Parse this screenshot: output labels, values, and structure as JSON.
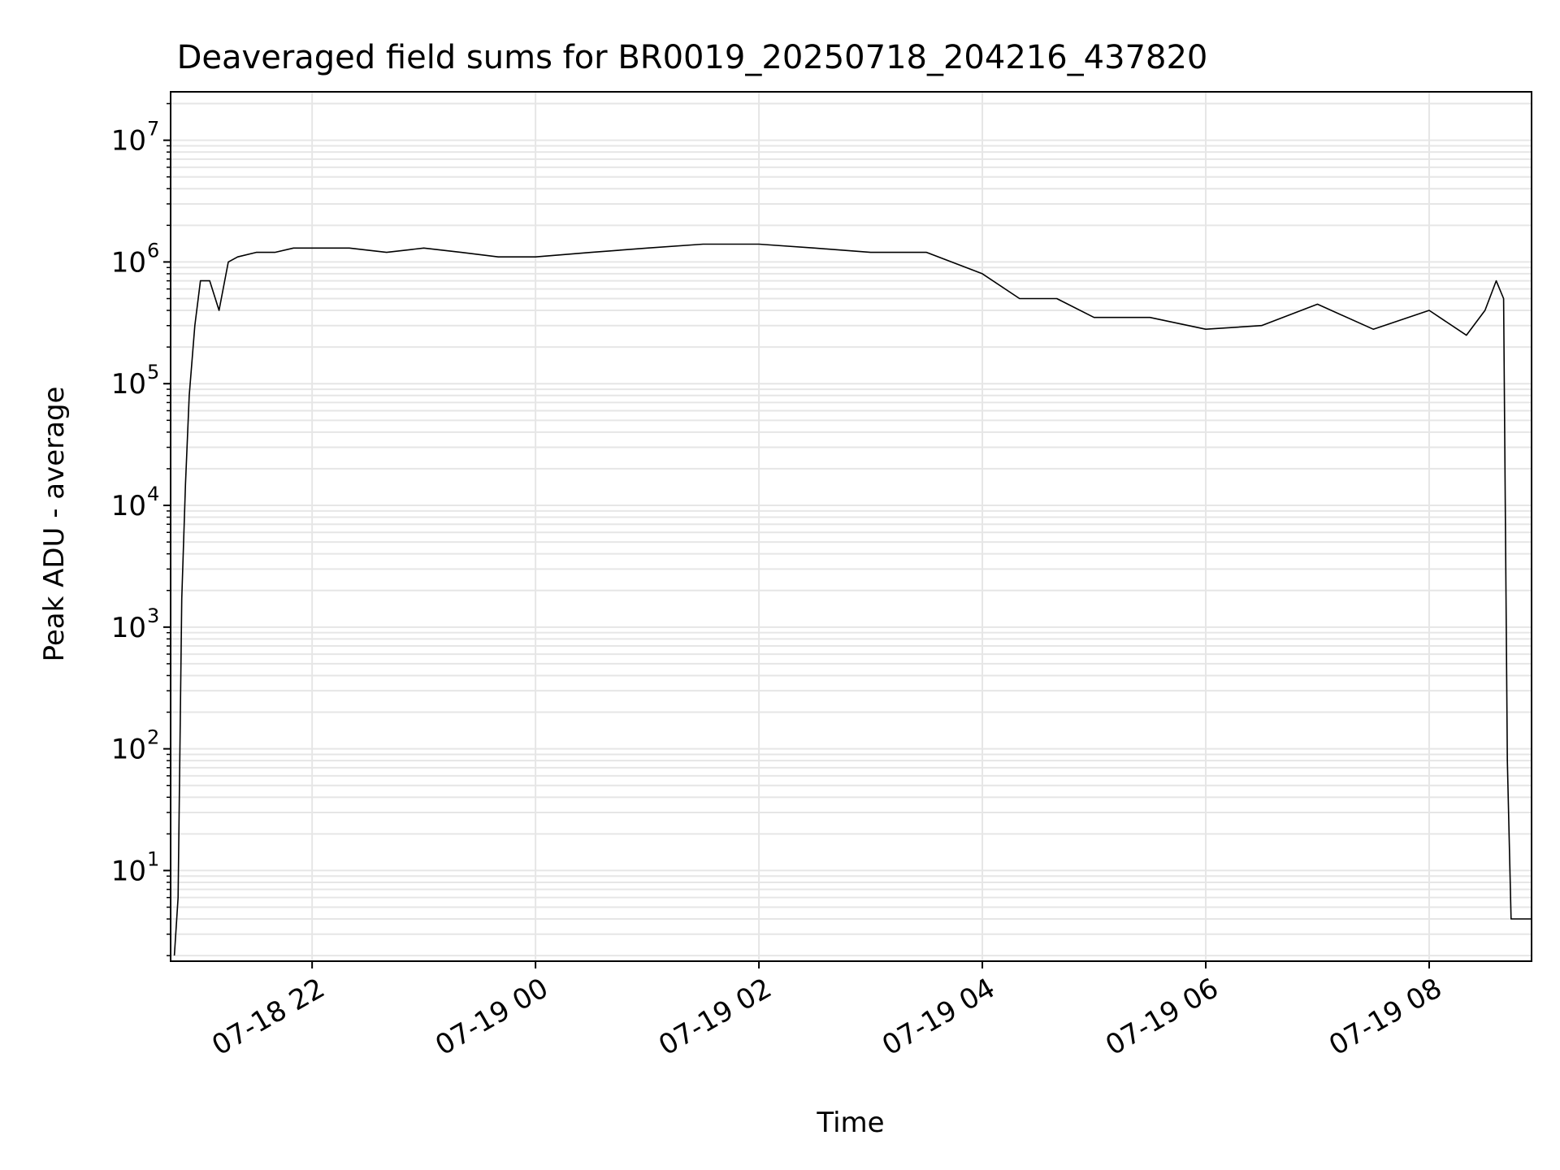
{
  "chart_data": {
    "type": "line",
    "title": "Deaveraged field sums for BR0019_20250718_204216_437820",
    "xlabel": "Time",
    "ylabel": "Peak ADU - average",
    "x_scale": "time",
    "y_scale": "log",
    "xlim": [
      "2025-07-18 20:44",
      "2025-07-19 08:55"
    ],
    "ylim": [
      1.8,
      25000000
    ],
    "x_ticks": [
      {
        "value": "2025-07-18 22:00",
        "label": "07-18 22"
      },
      {
        "value": "2025-07-19 00:00",
        "label": "07-19 00"
      },
      {
        "value": "2025-07-19 02:00",
        "label": "07-19 02"
      },
      {
        "value": "2025-07-19 04:00",
        "label": "07-19 04"
      },
      {
        "value": "2025-07-19 06:00",
        "label": "07-19 06"
      },
      {
        "value": "2025-07-19 08:00",
        "label": "07-19 08"
      }
    ],
    "y_ticks": [
      {
        "value": 10,
        "base": "10",
        "exp": "1"
      },
      {
        "value": 100,
        "base": "10",
        "exp": "2"
      },
      {
        "value": 1000,
        "base": "10",
        "exp": "3"
      },
      {
        "value": 10000,
        "base": "10",
        "exp": "4"
      },
      {
        "value": 100000,
        "base": "10",
        "exp": "5"
      },
      {
        "value": 1000000,
        "base": "10",
        "exp": "6"
      },
      {
        "value": 10000000,
        "base": "10",
        "exp": "7"
      }
    ],
    "grid": true,
    "line_color": "#000000",
    "grid_color": "#e6e6e6",
    "series": [
      {
        "x": [
          "2025-07-18 20:46",
          "2025-07-18 20:48",
          "2025-07-18 20:50",
          "2025-07-18 20:52",
          "2025-07-18 20:54",
          "2025-07-18 20:57",
          "2025-07-18 21:00",
          "2025-07-18 21:05",
          "2025-07-18 21:10",
          "2025-07-18 21:15",
          "2025-07-18 21:20",
          "2025-07-18 21:30",
          "2025-07-18 21:40",
          "2025-07-18 21:50",
          "2025-07-18 22:00",
          "2025-07-18 22:20",
          "2025-07-18 22:40",
          "2025-07-18 23:00",
          "2025-07-18 23:20",
          "2025-07-18 23:40",
          "2025-07-19 00:00",
          "2025-07-19 00:30",
          "2025-07-19 01:00",
          "2025-07-19 01:30",
          "2025-07-19 02:00",
          "2025-07-19 02:30",
          "2025-07-19 03:00",
          "2025-07-19 03:30",
          "2025-07-19 04:00",
          "2025-07-19 04:20",
          "2025-07-19 04:40",
          "2025-07-19 05:00",
          "2025-07-19 05:30",
          "2025-07-19 06:00",
          "2025-07-19 06:30",
          "2025-07-19 07:00",
          "2025-07-19 07:30",
          "2025-07-19 08:00",
          "2025-07-19 08:20",
          "2025-07-19 08:30",
          "2025-07-19 08:36",
          "2025-07-19 08:40",
          "2025-07-19 08:42",
          "2025-07-19 08:44",
          "2025-07-19 08:50",
          "2025-07-19 08:55"
        ],
        "y": [
          2,
          6,
          1700,
          15000,
          80000,
          300000,
          700000,
          700000,
          400000,
          1000000,
          1100000,
          1200000,
          1200000,
          1300000,
          1300000,
          1300000,
          1200000,
          1300000,
          1200000,
          1100000,
          1100000,
          1200000,
          1300000,
          1400000,
          1400000,
          1300000,
          1200000,
          1200000,
          800000,
          500000,
          500000,
          350000,
          350000,
          280000,
          300000,
          450000,
          280000,
          400000,
          250000,
          400000,
          700000,
          500000,
          80,
          4,
          4,
          4
        ]
      }
    ]
  }
}
